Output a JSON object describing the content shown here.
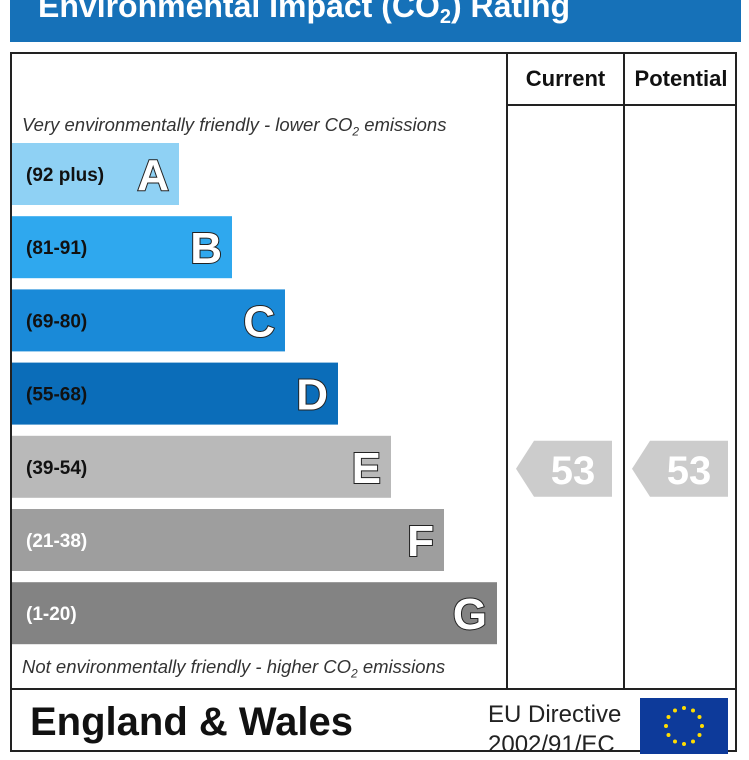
{
  "header": {
    "title_prefix": "Environmental Impact (CO",
    "title_sub": "2",
    "title_suffix": ") Rating"
  },
  "columns": {
    "current": "Current",
    "potential": "Potential"
  },
  "captions": {
    "top_prefix": "Very environmentally friendly - lower CO",
    "top_sub": "2",
    "top_suffix": " emissions",
    "bottom_prefix": "Not environmentally friendly - higher CO",
    "bottom_sub": "2",
    "bottom_suffix": " emissions"
  },
  "footer": {
    "country": "England & Wales",
    "directive_line1": "EU Directive",
    "directive_line2": "2002/91/EC"
  },
  "colors": {
    "header": "#1671b8",
    "pointer": "#cccccc"
  },
  "chart_data": {
    "type": "bar",
    "categories": [
      "A",
      "B",
      "C",
      "D",
      "E",
      "F",
      "G"
    ],
    "ranges": [
      "(92 plus)",
      "(81-91)",
      "(69-80)",
      "(55-68)",
      "(39-54)",
      "(21-38)",
      "(1-20)"
    ],
    "colors": [
      "#8fd1f4",
      "#2fa8ee",
      "#1a8ad8",
      "#0b6db9",
      "#b9b9b9",
      "#9e9e9e",
      "#838383"
    ],
    "range_text_colors": [
      "#111111",
      "#111111",
      "#111111",
      "#111111",
      "#111111",
      "#ffffff",
      "#ffffff"
    ],
    "current": {
      "value": 53,
      "band": "E"
    },
    "potential": {
      "value": 53,
      "band": "E"
    }
  }
}
